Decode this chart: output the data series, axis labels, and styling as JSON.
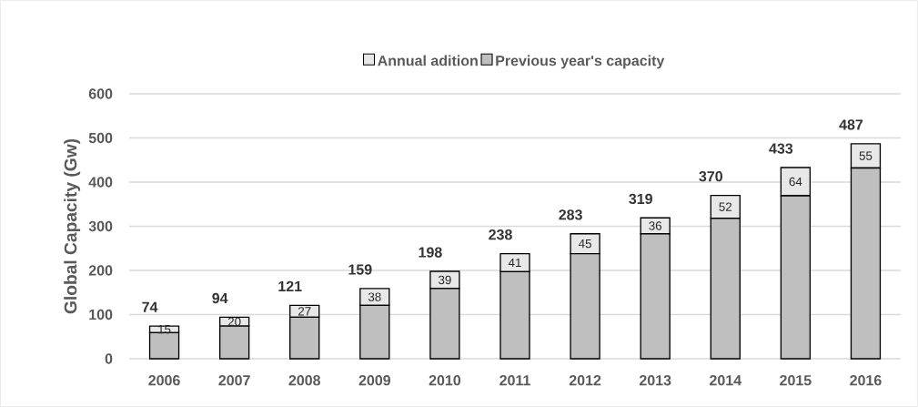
{
  "chart_data": {
    "type": "bar",
    "stacked": true,
    "ylabel": "Global Capacity (Gw)",
    "categories": [
      "2006",
      "2007",
      "2008",
      "2009",
      "2010",
      "2011",
      "2012",
      "2013",
      "2014",
      "2015",
      "2016"
    ],
    "series": [
      {
        "name": "Previous year's capacity",
        "color": "#bfbfbf",
        "values": [
          59,
          74,
          94,
          121,
          159,
          197,
          238,
          283,
          318,
          369,
          432
        ]
      },
      {
        "name": "Annual adition",
        "color": "#e8e8e8",
        "values": [
          15,
          20,
          27,
          38,
          39,
          41,
          45,
          36,
          52,
          64,
          55
        ],
        "value_labels": [
          "15",
          "20",
          "27",
          "38",
          "39",
          "41",
          "45",
          "36",
          "52",
          "64",
          "55"
        ]
      }
    ],
    "totals": [
      "74",
      "94",
      "121",
      "159",
      "198",
      "238",
      "283",
      "319",
      "370",
      "433",
      "487"
    ],
    "ylim": [
      0,
      600
    ],
    "yticks": [
      0,
      100,
      200,
      300,
      400,
      500,
      600
    ],
    "grid": "y",
    "legend": "top"
  }
}
